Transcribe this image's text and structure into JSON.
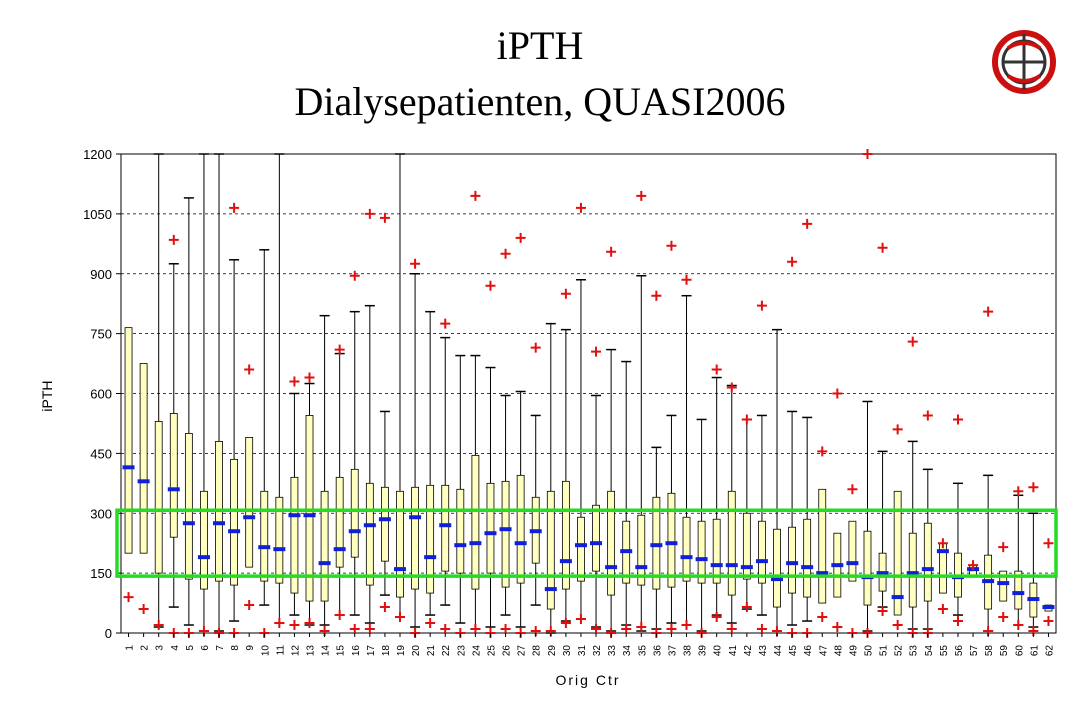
{
  "title": "iPTH",
  "subtitle": "Dialysepatienten, QUASI2006",
  "chart_data": {
    "type": "box",
    "xlabel": "Orig Ctr",
    "ylabel": "iPTH",
    "ylim": [
      0,
      1200
    ],
    "yticks": [
      0,
      150,
      300,
      450,
      600,
      750,
      900,
      1050,
      1200
    ],
    "grid": "horizontal dashed",
    "highlight_range": [
      150,
      300
    ],
    "colors": {
      "box_fill": "#ffffc0",
      "median": "#1020d8",
      "outlier": "#e01010",
      "highlight": "#22dd22"
    },
    "categories": [
      "1",
      "2",
      "3",
      "4",
      "5",
      "6",
      "7",
      "8",
      "9",
      "10",
      "11",
      "12",
      "13",
      "14",
      "15",
      "16",
      "17",
      "18",
      "19",
      "20",
      "21",
      "22",
      "23",
      "24",
      "25",
      "26",
      "27",
      "28",
      "29",
      "30",
      "31",
      "32",
      "33",
      "34",
      "35",
      "36",
      "37",
      "38",
      "39",
      "40",
      "41",
      "42",
      "43",
      "44",
      "45",
      "46",
      "47",
      "48",
      "49",
      "50",
      "51",
      "52",
      "53",
      "54",
      "55",
      "56",
      "57",
      "58",
      "59",
      "60",
      "61",
      "62"
    ],
    "series": [
      {
        "q1": 200,
        "q3": 765,
        "median": 415,
        "outliers": [
          90
        ]
      },
      {
        "q1": 200,
        "q3": 675,
        "median": 380,
        "outliers": [
          60
        ]
      },
      {
        "q1": 150,
        "q3": 530,
        "median": null,
        "wlow": 15,
        "whigh": 1200,
        "outliers": [
          20
        ]
      },
      {
        "q1": 240,
        "q3": 550,
        "median": 360,
        "wlow": 65,
        "whigh": 925,
        "outliers": [
          985,
          0
        ]
      },
      {
        "q1": 135,
        "q3": 500,
        "median": 275,
        "wlow": 20,
        "whigh": 1090,
        "outliers": [
          0
        ]
      },
      {
        "q1": 110,
        "q3": 355,
        "median": 190,
        "wlow": 5,
        "whigh": 1200,
        "outliers": [
          5
        ]
      },
      {
        "q1": 130,
        "q3": 480,
        "median": 275,
        "wlow": 5,
        "whigh": 1200,
        "outliers": [
          0
        ]
      },
      {
        "q1": 120,
        "q3": 435,
        "median": 255,
        "wlow": 30,
        "whigh": 935,
        "outliers": [
          1065,
          0
        ]
      },
      {
        "q1": 165,
        "q3": 490,
        "median": 290,
        "outliers": [
          660,
          70
        ]
      },
      {
        "q1": 130,
        "q3": 355,
        "median": 215,
        "wlow": 70,
        "whigh": 960,
        "outliers": [
          0
        ]
      },
      {
        "q1": 125,
        "q3": 340,
        "median": 210,
        "wlow": 25,
        "whigh": 1200,
        "outliers": [
          25
        ]
      },
      {
        "q1": 100,
        "q3": 390,
        "median": 295,
        "wlow": 45,
        "whigh": 600,
        "outliers": [
          630,
          20
        ]
      },
      {
        "q1": 80,
        "q3": 545,
        "median": 295,
        "wlow": 20,
        "whigh": 625,
        "outliers": [
          640,
          25
        ]
      },
      {
        "q1": 80,
        "q3": 355,
        "median": 175,
        "wlow": 20,
        "whigh": 795,
        "outliers": [
          5
        ]
      },
      {
        "q1": 165,
        "q3": 390,
        "median": 210,
        "wlow": 45,
        "whigh": 700,
        "outliers": [
          710,
          45
        ]
      },
      {
        "q1": 190,
        "q3": 410,
        "median": 255,
        "wlow": 45,
        "whigh": 805,
        "outliers": [
          895,
          10
        ]
      },
      {
        "q1": 120,
        "q3": 375,
        "median": 270,
        "wlow": 25,
        "whigh": 820,
        "outliers": [
          1050,
          10
        ]
      },
      {
        "q1": 180,
        "q3": 365,
        "median": 285,
        "wlow": 95,
        "whigh": 555,
        "outliers": [
          1040,
          65
        ]
      },
      {
        "q1": 90,
        "q3": 355,
        "median": 160,
        "wlow": 40,
        "whigh": 1200,
        "outliers": [
          40
        ]
      },
      {
        "q1": 110,
        "q3": 365,
        "median": 290,
        "wlow": 15,
        "whigh": 900,
        "outliers": [
          925,
          0
        ]
      },
      {
        "q1": 100,
        "q3": 370,
        "median": 190,
        "wlow": 45,
        "whigh": 805,
        "outliers": [
          25
        ]
      },
      {
        "q1": 155,
        "q3": 370,
        "median": 270,
        "wlow": 70,
        "whigh": 740,
        "outliers": [
          775,
          10
        ]
      },
      {
        "q1": 150,
        "q3": 360,
        "median": 220,
        "wlow": 25,
        "whigh": 695,
        "outliers": [
          0
        ]
      },
      {
        "q1": 110,
        "q3": 445,
        "median": 225,
        "wlow": 10,
        "whigh": 695,
        "outliers": [
          1095,
          10
        ]
      },
      {
        "q1": 150,
        "q3": 375,
        "median": 250,
        "wlow": 15,
        "whigh": 665,
        "outliers": [
          870,
          0
        ]
      },
      {
        "q1": 115,
        "q3": 380,
        "median": 260,
        "wlow": 45,
        "whigh": 595,
        "outliers": [
          950,
          10
        ]
      },
      {
        "q1": 125,
        "q3": 395,
        "median": 225,
        "wlow": 15,
        "whigh": 605,
        "outliers": [
          990,
          0
        ]
      },
      {
        "q1": 175,
        "q3": 340,
        "median": 255,
        "wlow": 70,
        "whigh": 545,
        "outliers": [
          715,
          5
        ]
      },
      {
        "q1": 60,
        "q3": 355,
        "median": 110,
        "wlow": 0,
        "whigh": 775,
        "outliers": [
          5
        ]
      },
      {
        "q1": 110,
        "q3": 380,
        "median": 180,
        "wlow": 30,
        "whigh": 760,
        "outliers": [
          850,
          25
        ]
      },
      {
        "q1": 130,
        "q3": 290,
        "median": 220,
        "wlow": 35,
        "whigh": 885,
        "outliers": [
          1065,
          35
        ]
      },
      {
        "q1": 155,
        "q3": 320,
        "median": 225,
        "wlow": 15,
        "whigh": 595,
        "outliers": [
          705,
          10
        ]
      },
      {
        "q1": 95,
        "q3": 355,
        "median": 165,
        "wlow": 5,
        "whigh": 710,
        "outliers": [
          955,
          0
        ]
      },
      {
        "q1": 125,
        "q3": 280,
        "median": 205,
        "wlow": 20,
        "whigh": 680,
        "outliers": [
          10
        ]
      },
      {
        "q1": 120,
        "q3": 295,
        "median": 165,
        "wlow": 5,
        "whigh": 895,
        "outliers": [
          1095,
          15
        ]
      },
      {
        "q1": 110,
        "q3": 340,
        "median": 220,
        "wlow": 10,
        "whigh": 465,
        "outliers": [
          845,
          0
        ]
      },
      {
        "q1": 115,
        "q3": 350,
        "median": 225,
        "wlow": 25,
        "whigh": 545,
        "outliers": [
          970,
          10
        ]
      },
      {
        "q1": 130,
        "q3": 290,
        "median": 190,
        "wlow": 20,
        "whigh": 845,
        "outliers": [
          885,
          20
        ]
      },
      {
        "q1": 125,
        "q3": 280,
        "median": 185,
        "wlow": 5,
        "whigh": 535,
        "outliers": [
          0
        ]
      },
      {
        "q1": 125,
        "q3": 285,
        "median": 170,
        "wlow": 45,
        "whigh": 640,
        "outliers": [
          660,
          40
        ]
      },
      {
        "q1": 95,
        "q3": 355,
        "median": 170,
        "wlow": 25,
        "whigh": 620,
        "outliers": [
          615,
          10
        ]
      },
      {
        "q1": 135,
        "q3": 300,
        "median": 165,
        "wlow": 60,
        "whigh": 535,
        "outliers": [
          535,
          65
        ]
      },
      {
        "q1": 125,
        "q3": 280,
        "median": 180,
        "wlow": 45,
        "whigh": 545,
        "outliers": [
          820,
          10
        ]
      },
      {
        "q1": 65,
        "q3": 260,
        "median": 135,
        "wlow": 5,
        "whigh": 760,
        "outliers": [
          5
        ]
      },
      {
        "q1": 100,
        "q3": 265,
        "median": 175,
        "wlow": 20,
        "whigh": 555,
        "outliers": [
          930,
          0
        ]
      },
      {
        "q1": 90,
        "q3": 285,
        "median": 165,
        "wlow": 30,
        "whigh": 540,
        "outliers": [
          1025,
          0
        ]
      },
      {
        "q1": 75,
        "q3": 360,
        "median": 150,
        "outliers": [
          455,
          40
        ]
      },
      {
        "q1": 90,
        "q3": 250,
        "median": 170,
        "outliers": [
          600,
          15
        ]
      },
      {
        "q1": 130,
        "q3": 280,
        "median": 175,
        "outliers": [
          360,
          0
        ]
      },
      {
        "q1": 70,
        "q3": 255,
        "median": 140,
        "wlow": 5,
        "whigh": 580,
        "outliers": [
          1200,
          0
        ]
      },
      {
        "q1": 105,
        "q3": 200,
        "median": 150,
        "wlow": 65,
        "whigh": 455,
        "outliers": [
          965,
          55
        ]
      },
      {
        "q1": 45,
        "q3": 355,
        "median": 90,
        "outliers": [
          510,
          20
        ]
      },
      {
        "q1": 65,
        "q3": 250,
        "median": 150,
        "wlow": 10,
        "whigh": 480,
        "outliers": [
          730,
          0
        ]
      },
      {
        "q1": 80,
        "q3": 275,
        "median": 160,
        "wlow": 10,
        "whigh": 410,
        "outliers": [
          545,
          0
        ]
      },
      {
        "q1": 100,
        "q3": 225,
        "median": 205,
        "outliers": [
          225,
          60
        ]
      },
      {
        "q1": 90,
        "q3": 200,
        "median": 140,
        "wlow": 45,
        "whigh": 375,
        "outliers": [
          535,
          30
        ]
      },
      {
        "q1": 140,
        "q3": 170,
        "median": 160,
        "outliers": [
          170
        ]
      },
      {
        "q1": 60,
        "q3": 195,
        "median": 130,
        "wlow": 5,
        "whigh": 395,
        "outliers": [
          805,
          5
        ]
      },
      {
        "q1": 80,
        "q3": 155,
        "median": 125,
        "outliers": [
          215,
          40
        ]
      },
      {
        "q1": 60,
        "q3": 155,
        "median": 100,
        "wlow": 20,
        "whigh": 345,
        "outliers": [
          355,
          20
        ]
      },
      {
        "q1": 40,
        "q3": 125,
        "median": 85,
        "wlow": 15,
        "whigh": 300,
        "outliers": [
          365,
          5
        ]
      },
      {
        "q1": 55,
        "q3": 70,
        "median": 65,
        "outliers": [
          225,
          30
        ]
      }
    ]
  }
}
